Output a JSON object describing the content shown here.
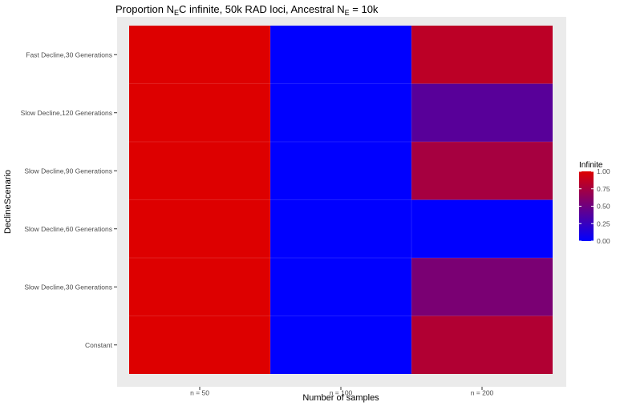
{
  "chart_data": {
    "type": "heatmap",
    "title": {
      "parts": [
        {
          "text": "Proportion N"
        },
        {
          "text": "E",
          "sub": true
        },
        {
          "text": "C infinite, 50k RAD loci, Ancestral N"
        },
        {
          "text": "E",
          "sub": true
        },
        {
          "text": " = 10k"
        }
      ]
    },
    "xlabel": "Number of samples",
    "ylabel": "DeclineScenario",
    "x_categories": [
      "n = 50",
      "n = 100",
      "n = 200"
    ],
    "y_categories": [
      "Constant",
      "Slow Decline,30 Generations",
      "Slow Decline,60 Generations",
      "Slow Decline,90 Generations",
      "Slow Decline,120 Generations",
      "Fast Decline,30 Generations"
    ],
    "values": [
      [
        1.0,
        0.0,
        0.8
      ],
      [
        1.0,
        0.0,
        0.55
      ],
      [
        1.0,
        0.0,
        0.0
      ],
      [
        1.0,
        0.0,
        0.75
      ],
      [
        1.0,
        0.0,
        0.4
      ],
      [
        1.0,
        0.0,
        0.85
      ]
    ],
    "legend": {
      "title": "Infinite",
      "ticks": [
        "1.00",
        "0.75",
        "0.50",
        "0.25",
        "0.00"
      ],
      "range": [
        0,
        1
      ],
      "low_color": "#0000ff",
      "high_color": "#dd0000",
      "placement": "right"
    },
    "panel_background": "#ebebeb",
    "grid": true
  }
}
